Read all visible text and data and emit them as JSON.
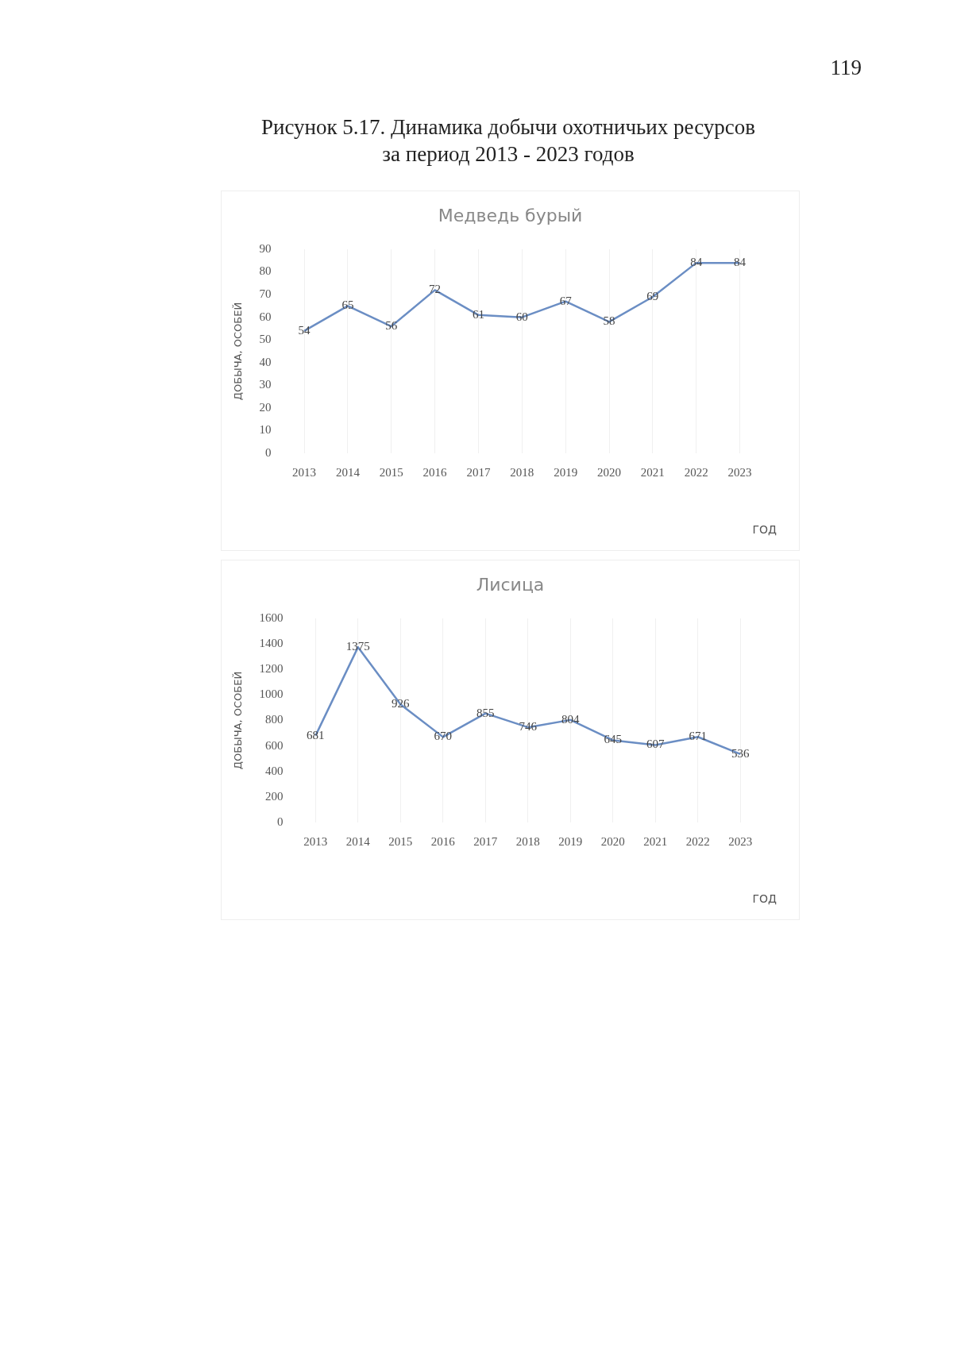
{
  "chart_data": [
    {
      "type": "line",
      "title": "Медведь бурый",
      "xlabel": "ГОД",
      "ylabel": "ДОБЫЧА, ОСОБЕЙ",
      "annotations": [
        "119",
        "Рисунок 5.17. Динамика добычи охотничьих ресурсов\nза период 2013 - 2023 годов"
      ],
      "categories": [
        "2013",
        "2014",
        "2015",
        "2016",
        "2017",
        "2018",
        "2019",
        "2020",
        "2021",
        "2022",
        "2023"
      ],
      "series": [
        {
          "color": "#6b8ec4",
          "values": [
            54,
            65,
            56,
            72,
            61,
            60,
            67,
            58,
            69,
            84,
            84
          ]
        }
      ],
      "ylim": [
        0,
        90
      ],
      "yticks": [
        0,
        10,
        20,
        30,
        40,
        50,
        60,
        70,
        80,
        90
      ],
      "grid": "x",
      "legend": false,
      "data_labels": true,
      "marker": "none"
    },
    {
      "type": "line",
      "title": "Лисица",
      "xlabel": "ГОД",
      "ylabel": "ДОБЫЧА, ОСОБЕЙ",
      "categories": [
        "2013",
        "2014",
        "2015",
        "2016",
        "2017",
        "2018",
        "2019",
        "2020",
        "2021",
        "2022",
        "2023"
      ],
      "series": [
        {
          "color": "#6b8ec4",
          "values": [
            681,
            1375,
            926,
            670,
            855,
            746,
            804,
            645,
            607,
            671,
            536
          ]
        }
      ],
      "ylim": [
        0,
        1600
      ],
      "yticks": [
        0,
        200,
        400,
        600,
        800,
        1000,
        1200,
        1400,
        1600
      ],
      "grid": "x",
      "legend": false,
      "data_labels": true,
      "marker": "none"
    }
  ]
}
